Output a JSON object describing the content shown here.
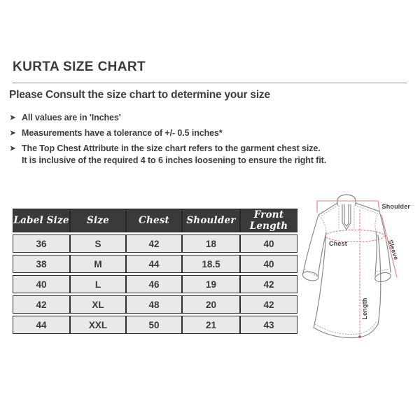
{
  "page": {
    "title": "KURTA SIZE CHART",
    "subtitle": "Please Consult the size chart to determine your size",
    "bullet_icon": "➤",
    "bullets": [
      "All values are in 'Inches'",
      "Measurements have a tolerance of +/- 0.5 inches*",
      "The Top Chest Attribute in the size chart refers to the garment chest size.\nIt is inclusive of the required 4 to 6 inches loosening to ensure the right fit."
    ]
  },
  "size_table": {
    "columns": [
      "Label Size",
      "Size",
      "Chest",
      "Shoulder",
      "Front Length"
    ],
    "rows": [
      [
        "36",
        "S",
        "42",
        "18",
        "40"
      ],
      [
        "38",
        "M",
        "44",
        "18.5",
        "40"
      ],
      [
        "40",
        "L",
        "46",
        "19",
        "42"
      ],
      [
        "42",
        "XL",
        "48",
        "20",
        "42"
      ],
      [
        "44",
        "XXL",
        "50",
        "21",
        "43"
      ]
    ]
  },
  "diagram": {
    "labels": {
      "shoulder": "Shoulder",
      "sleeve": "Sleeve",
      "chest": "Chest",
      "length": "Length"
    },
    "colors": {
      "measure_line": "#de8181",
      "outline": "#8a8a8a",
      "seam": "#a8a8a8",
      "label": "#3e3e3e"
    }
  },
  "colors": {
    "text": "#3d3d3d",
    "header_bg": "#3a3a3a",
    "header_text": "#ffffff",
    "row_bg": "#e9e9e9",
    "cell_border": "#2e2e2e",
    "divider": "#8f8f8f"
  }
}
